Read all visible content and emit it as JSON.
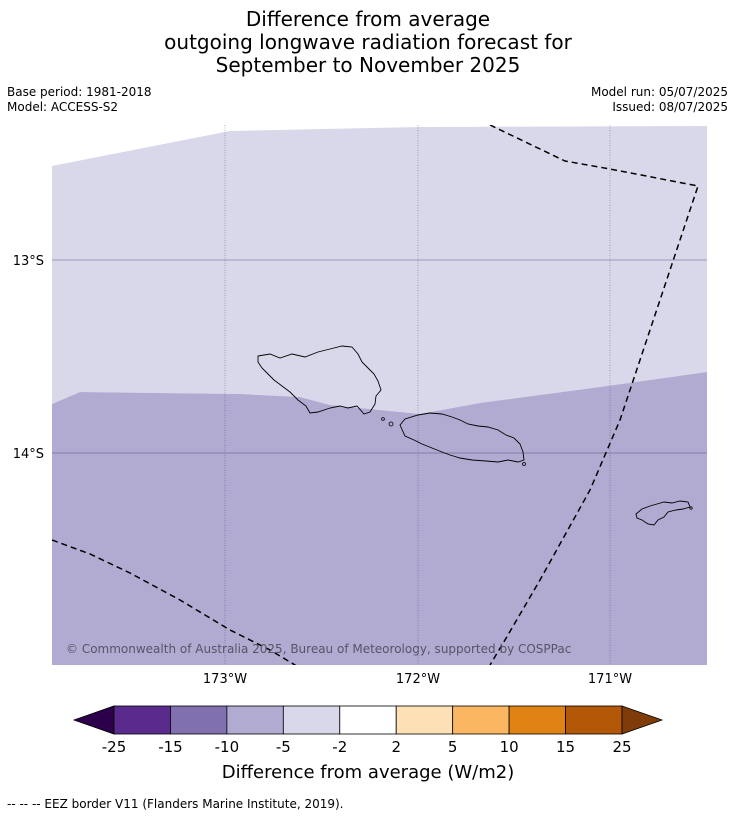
{
  "title": {
    "line1": "Difference from average",
    "line2": "outgoing longwave radiation forecast for",
    "line3": "September to November 2025"
  },
  "meta": {
    "base_period": "Base period: 1981-2018",
    "model": "Model: ACCESS-S2",
    "model_run": "Model run: 05/07/2025",
    "issued": "Issued: 08/07/2025"
  },
  "axes": {
    "lat_labels": [
      "13°S",
      "14°S"
    ],
    "lon_labels": [
      "173°W",
      "172°W",
      "171°W"
    ]
  },
  "copyright": "© Commonwealth of Australia 2025, Bureau of Meteorology, supported by COSPPac",
  "colorbar": {
    "ticks": [
      "-25",
      "-15",
      "-10",
      "-5",
      "-2",
      "2",
      "5",
      "10",
      "15",
      "25"
    ],
    "colors": [
      "#5a2a8c",
      "#8170b0",
      "#b1abd2",
      "#d8d8ea",
      "#ffffff",
      "#fde0b6",
      "#fbb662",
      "#e08214",
      "#b35806"
    ],
    "low_extend_color": "#2d004b",
    "high_extend_color": "#7f3b08",
    "label": "Difference from average (W/m2)"
  },
  "map_colors": {
    "upper_region": "#d8d8ea",
    "lower_region": "#b1abd2"
  },
  "footer": "--  --  -- EEZ border V11 (Flanders Marine Institute, 2019)."
}
